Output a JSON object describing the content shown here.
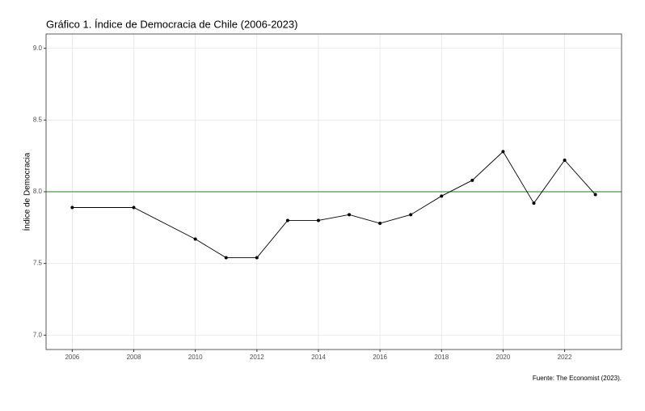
{
  "chart_data": {
    "type": "line",
    "title": "Gráfico 1. Índice de Democracia de Chile (2006-2023)",
    "y_label": "Índice de Democracia",
    "caption": "Fuente: The Economist (2023).",
    "x": [
      2006,
      2008,
      2010,
      2011,
      2012,
      2013,
      2014,
      2015,
      2016,
      2017,
      2018,
      2019,
      2020,
      2021,
      2022,
      2023
    ],
    "series": [
      {
        "color": "#000000",
        "values": [
          7.89,
          7.89,
          7.67,
          7.54,
          7.54,
          7.8,
          7.8,
          7.84,
          7.78,
          7.84,
          7.97,
          8.08,
          8.28,
          7.92,
          8.22,
          7.98
        ]
      }
    ],
    "xlim": [
      2005.15,
      2023.85
    ],
    "xticks": [
      2006,
      2008,
      2010,
      2012,
      2014,
      2016,
      2018,
      2020,
      2022
    ],
    "ylim": [
      6.9,
      9.1
    ],
    "yticks": [
      {
        "value": 7,
        "label": "7.0"
      },
      {
        "value": 7.5,
        "label": "7.5"
      },
      {
        "value": 8,
        "label": "8.0"
      },
      {
        "value": 8.5,
        "label": "8.5"
      },
      {
        "value": 9,
        "label": "9.0"
      }
    ],
    "reference_line": {
      "value": 8,
      "color": "#4a9a4a"
    },
    "grid": true
  }
}
